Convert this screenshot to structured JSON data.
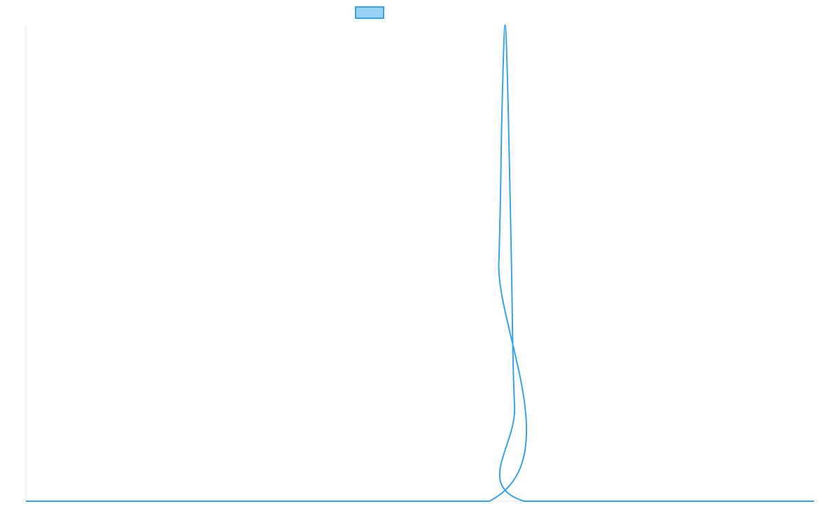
{
  "chart_data": {
    "type": "line",
    "title": "",
    "xlabel": "",
    "ylabel": "",
    "legend": {
      "placement": "top-center",
      "entries": [
        {
          "name": "",
          "swatch_color": "#9bd0f5",
          "border_color": "#36a2eb"
        }
      ]
    },
    "grid": false,
    "xlim": [
      0,
      100
    ],
    "ylim": [
      0,
      1
    ],
    "series": [
      {
        "name": "",
        "color": "#36a2eb",
        "x": [
          0,
          58.8,
          60.0,
          60.4,
          60.8,
          61.2,
          61.6,
          62.0,
          63.2,
          100
        ],
        "y": [
          0,
          0,
          0.5,
          0.82,
          1.0,
          0.82,
          0.5,
          0.2,
          0,
          0
        ]
      }
    ]
  }
}
